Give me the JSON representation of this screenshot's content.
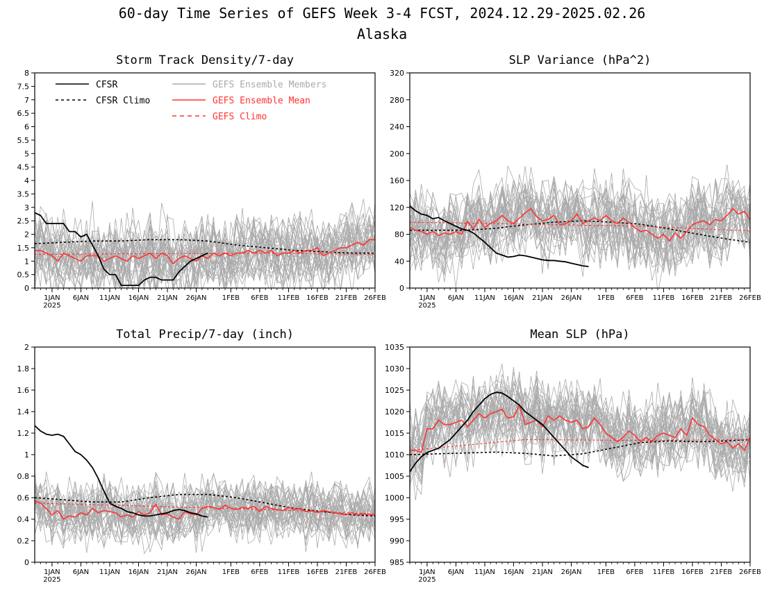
{
  "figure": {
    "title_line1": "60-day Time Series of GEFS Week 3-4 FCST, 2024.12.29-2025.02.26",
    "title_line2": "Alaska"
  },
  "colors": {
    "cfsr": "#000000",
    "members": "#aaaaaa",
    "ens_mean": "#ff3333",
    "gefs_climo": "#ff3333"
  },
  "legend": {
    "cfsr": "CFSR",
    "cfsr_climo": "CFSR Climo",
    "members": "GEFS Ensemble Members",
    "ens_mean": "GEFS Ensemble Mean",
    "gefs_climo": "GEFS Climo"
  },
  "x_axis": {
    "start_date": "2024-12-29",
    "n_days": 60,
    "tick_labels": [
      "1JAN",
      "6JAN",
      "11JAN",
      "16JAN",
      "21JAN",
      "26JAN",
      "1FEB",
      "6FEB",
      "11FEB",
      "16FEB",
      "21FEB",
      "26FEB"
    ],
    "tick_days": [
      3,
      8,
      13,
      18,
      23,
      28,
      34,
      39,
      44,
      49,
      54,
      59
    ],
    "year_label": "2025"
  },
  "chart_data": [
    {
      "type": "line",
      "title": "Storm Track Density/7-day",
      "ylim": [
        0,
        8
      ],
      "yticks": [
        0,
        0.5,
        1,
        1.5,
        2,
        2.5,
        3,
        3.5,
        4,
        4.5,
        5,
        5.5,
        6,
        6.5,
        7,
        7.5,
        8
      ],
      "ytick_labels": [
        "0",
        "0.5",
        "1",
        "1.5",
        "2",
        "2.5",
        "3",
        "3.5",
        "4",
        "4.5",
        "5",
        "5.5",
        "6",
        "6.5",
        "7",
        "7.5",
        "8"
      ],
      "has_legend": true,
      "members_count": 31,
      "members_spread": 0.7,
      "cfsr": {
        "x": [
          0,
          1,
          2,
          5,
          6,
          7,
          8,
          9,
          10,
          11,
          12,
          13,
          14,
          15,
          16,
          17,
          18,
          19,
          20,
          21,
          22,
          23,
          24,
          25,
          26,
          27,
          28,
          29,
          30
        ],
        "y": [
          2.8,
          2.7,
          2.4,
          2.4,
          2.1,
          2.1,
          1.9,
          2.0,
          1.6,
          1.2,
          0.7,
          0.5,
          0.5,
          0.1,
          0.1,
          0.1,
          0.1,
          0.3,
          0.4,
          0.4,
          0.3,
          0.3,
          0.3,
          0.6,
          0.8,
          1.0,
          1.1,
          1.2,
          1.3
        ]
      },
      "cfsr_climo": {
        "x": [
          0,
          5,
          10,
          15,
          20,
          25,
          30,
          35,
          40,
          45,
          50,
          55,
          59
        ],
        "y": [
          1.65,
          1.7,
          1.75,
          1.75,
          1.8,
          1.8,
          1.75,
          1.6,
          1.5,
          1.4,
          1.35,
          1.3,
          1.3
        ]
      },
      "ens_mean": {
        "x": [
          0,
          1,
          2,
          3,
          4,
          5,
          6,
          7,
          8,
          9,
          10,
          11,
          12,
          13,
          14,
          15,
          16,
          17,
          18,
          19,
          20,
          21,
          22,
          23,
          24,
          25,
          26,
          27,
          28,
          29,
          30,
          31,
          32,
          33,
          34,
          35,
          36,
          37,
          38,
          39,
          40,
          41,
          42,
          43,
          44,
          45,
          46,
          47,
          48,
          49,
          50,
          51,
          52,
          53,
          54,
          55,
          56,
          57,
          58,
          59
        ],
        "y": [
          1.4,
          1.4,
          1.3,
          1.2,
          1.0,
          1.3,
          1.2,
          1.1,
          1.0,
          1.2,
          1.2,
          1.2,
          1.0,
          1.1,
          1.2,
          1.1,
          1.0,
          1.2,
          1.1,
          1.2,
          1.3,
          1.1,
          1.3,
          1.2,
          0.9,
          1.1,
          1.2,
          1.1,
          1.0,
          1.2,
          1.1,
          1.3,
          1.2,
          1.3,
          1.2,
          1.3,
          1.3,
          1.4,
          1.3,
          1.4,
          1.3,
          1.4,
          1.2,
          1.3,
          1.3,
          1.4,
          1.3,
          1.4,
          1.4,
          1.5,
          1.2,
          1.3,
          1.4,
          1.5,
          1.5,
          1.6,
          1.7,
          1.6,
          1.8,
          1.8
        ]
      },
      "gefs_climo": {
        "x": [
          0,
          20,
          40,
          59
        ],
        "y": [
          1.25,
          1.28,
          1.3,
          1.25
        ]
      }
    },
    {
      "type": "line",
      "title": "SLP Variance (hPa^2)",
      "ylim": [
        0,
        320
      ],
      "yticks": [
        0,
        40,
        80,
        120,
        160,
        200,
        240,
        280,
        320
      ],
      "ytick_labels": [
        "0",
        "40",
        "80",
        "120",
        "160",
        "200",
        "240",
        "280",
        "320"
      ],
      "has_legend": false,
      "members_count": 31,
      "members_spread": 30,
      "cfsr": {
        "x": [
          0,
          1,
          2,
          3,
          4,
          5,
          6,
          7,
          8,
          9,
          10,
          11,
          12,
          13,
          14,
          15,
          16,
          17,
          18,
          19,
          20,
          21,
          22,
          23,
          24,
          25,
          26,
          27,
          28,
          29,
          30,
          31
        ],
        "y": [
          122,
          115,
          110,
          108,
          103,
          105,
          100,
          96,
          92,
          88,
          86,
          82,
          75,
          68,
          60,
          52,
          49,
          46,
          47,
          49,
          48,
          46,
          44,
          42,
          41,
          41,
          40,
          39,
          37,
          35,
          33,
          32
        ]
      },
      "cfsr_climo": {
        "x": [
          0,
          5,
          10,
          15,
          20,
          25,
          30,
          35,
          40,
          45,
          50,
          55,
          59
        ],
        "y": [
          86,
          86,
          86,
          89,
          94,
          98,
          100,
          98,
          95,
          88,
          80,
          73,
          68
        ]
      },
      "ens_mean": {
        "x": [
          0,
          1,
          2,
          3,
          4,
          5,
          6,
          7,
          8,
          9,
          10,
          11,
          12,
          13,
          14,
          15,
          16,
          17,
          18,
          19,
          20,
          21,
          22,
          23,
          24,
          25,
          26,
          27,
          28,
          29,
          30,
          31,
          32,
          33,
          34,
          35,
          36,
          37,
          38,
          39,
          40,
          41,
          42,
          43,
          44,
          45,
          46,
          47,
          48,
          49,
          50,
          51,
          52,
          53,
          54,
          55,
          56,
          57,
          58,
          59
        ],
        "y": [
          90,
          86,
          84,
          80,
          84,
          78,
          82,
          80,
          84,
          80,
          99,
          88,
          102,
          90,
          96,
          100,
          108,
          100,
          96,
          104,
          112,
          118,
          106,
          100,
          102,
          108,
          94,
          96,
          100,
          110,
          96,
          100,
          104,
          100,
          108,
          100,
          96,
          104,
          98,
          90,
          84,
          86,
          80,
          74,
          80,
          70,
          82,
          74,
          84,
          94,
          98,
          100,
          94,
          102,
          100,
          108,
          118,
          110,
          114,
          102
        ]
      },
      "gefs_climo": {
        "x": [
          0,
          20,
          40,
          59
        ],
        "y": [
          98,
          95,
          92,
          85
        ]
      }
    },
    {
      "type": "line",
      "title": "Total Precip/7-day (inch)",
      "ylim": [
        0,
        2
      ],
      "yticks": [
        0,
        0.2,
        0.4,
        0.6,
        0.8,
        1,
        1.2,
        1.4,
        1.6,
        1.8,
        2
      ],
      "ytick_labels": [
        "0",
        "0.2",
        "0.4",
        "0.6",
        "0.8",
        "1",
        "1.2",
        "1.4",
        "1.6",
        "1.8",
        "2"
      ],
      "has_legend": false,
      "members_count": 31,
      "members_spread": 0.14,
      "cfsr": {
        "x": [
          0,
          1,
          2,
          3,
          4,
          5,
          6,
          7,
          8,
          9,
          10,
          11,
          12,
          13,
          14,
          15,
          16,
          17,
          18,
          19,
          20,
          21,
          22,
          23,
          24,
          25,
          26,
          27,
          28,
          29,
          30
        ],
        "y": [
          1.27,
          1.22,
          1.19,
          1.18,
          1.19,
          1.17,
          1.1,
          1.03,
          1.0,
          0.95,
          0.88,
          0.78,
          0.66,
          0.55,
          0.52,
          0.5,
          0.47,
          0.46,
          0.44,
          0.43,
          0.43,
          0.44,
          0.45,
          0.46,
          0.48,
          0.49,
          0.48,
          0.46,
          0.45,
          0.43,
          0.42
        ]
      },
      "cfsr_climo": {
        "x": [
          0,
          5,
          10,
          15,
          20,
          25,
          30,
          35,
          40,
          45,
          50,
          55,
          59
        ],
        "y": [
          0.6,
          0.58,
          0.56,
          0.56,
          0.6,
          0.63,
          0.63,
          0.6,
          0.55,
          0.5,
          0.47,
          0.44,
          0.43
        ]
      },
      "ens_mean": {
        "x": [
          0,
          1,
          2,
          3,
          4,
          5,
          6,
          7,
          8,
          9,
          10,
          11,
          12,
          13,
          14,
          15,
          16,
          17,
          18,
          19,
          20,
          21,
          22,
          23,
          24,
          25,
          26,
          27,
          28,
          29,
          30,
          31,
          32,
          33,
          34,
          35,
          36,
          37,
          38,
          39,
          40,
          41,
          42,
          43,
          44,
          45,
          46,
          47,
          48,
          49,
          50,
          51,
          52,
          53,
          54,
          55,
          56,
          57,
          58,
          59
        ],
        "y": [
          0.57,
          0.55,
          0.5,
          0.44,
          0.48,
          0.4,
          0.43,
          0.42,
          0.46,
          0.44,
          0.5,
          0.46,
          0.48,
          0.47,
          0.46,
          0.42,
          0.44,
          0.42,
          0.47,
          0.44,
          0.46,
          0.54,
          0.44,
          0.45,
          0.42,
          0.4,
          0.47,
          0.45,
          0.44,
          0.5,
          0.52,
          0.51,
          0.49,
          0.53,
          0.5,
          0.49,
          0.51,
          0.5,
          0.52,
          0.47,
          0.52,
          0.5,
          0.49,
          0.48,
          0.51,
          0.49,
          0.5,
          0.47,
          0.48,
          0.46,
          0.48,
          0.47,
          0.46,
          0.45,
          0.44,
          0.46,
          0.44,
          0.45,
          0.44,
          0.44
        ]
      },
      "gefs_climo": {
        "x": [
          0,
          20,
          40,
          59
        ],
        "y": [
          0.55,
          0.52,
          0.49,
          0.45
        ]
      }
    },
    {
      "type": "line",
      "title": "Mean SLP (hPa)",
      "ylim": [
        985,
        1035
      ],
      "yticks": [
        985,
        990,
        995,
        1000,
        1005,
        1010,
        1015,
        1020,
        1025,
        1030,
        1035
      ],
      "ytick_labels": [
        "985",
        "990",
        "995",
        "1000",
        "1005",
        "1010",
        "1015",
        "1020",
        "1025",
        "1030",
        "1035"
      ],
      "has_legend": false,
      "members_count": 31,
      "members_spread": 4.5,
      "cfsr": {
        "x": [
          0,
          1,
          2,
          3,
          4,
          5,
          6,
          7,
          8,
          9,
          10,
          11,
          12,
          13,
          14,
          15,
          16,
          17,
          18,
          19,
          20,
          21,
          22,
          23,
          24,
          25,
          26,
          27,
          28,
          29,
          30,
          31
        ],
        "y": [
          1006,
          1008,
          1009.5,
          1010.5,
          1011,
          1011.5,
          1012.5,
          1013.5,
          1015,
          1016.5,
          1018,
          1020,
          1021.5,
          1023,
          1024,
          1024.5,
          1024.3,
          1023.5,
          1022.5,
          1021.5,
          1020,
          1019,
          1018,
          1017,
          1015.5,
          1014,
          1012.5,
          1011,
          1009.5,
          1008.5,
          1007.5,
          1007
        ]
      },
      "cfsr_climo": {
        "x": [
          0,
          5,
          10,
          15,
          20,
          25,
          30,
          35,
          40,
          45,
          50,
          55,
          59
        ],
        "y": [
          1010,
          1010.2,
          1010.4,
          1010.6,
          1010.3,
          1009.7,
          1010.2,
          1011.5,
          1012.8,
          1013.2,
          1013,
          1013.2,
          1013.5
        ]
      },
      "ens_mean": {
        "x": [
          0,
          1,
          2,
          3,
          4,
          5,
          6,
          7,
          8,
          9,
          10,
          11,
          12,
          13,
          14,
          15,
          16,
          17,
          18,
          19,
          20,
          21,
          22,
          23,
          24,
          25,
          26,
          27,
          28,
          29,
          30,
          31,
          32,
          33,
          34,
          35,
          36,
          37,
          38,
          39,
          40,
          41,
          42,
          43,
          44,
          45,
          46,
          47,
          48,
          49,
          50,
          51,
          52,
          53,
          54,
          55,
          56,
          57,
          58,
          59
        ],
        "y": [
          1011,
          1011,
          1010.5,
          1016,
          1016,
          1018,
          1017,
          1017,
          1017.5,
          1018,
          1016.5,
          1018,
          1019.5,
          1018.5,
          1019.5,
          1020,
          1020.5,
          1018.5,
          1018.8,
          1021.5,
          1017,
          1017.5,
          1018,
          1016.5,
          1019,
          1018,
          1019,
          1018,
          1017.5,
          1018,
          1016,
          1016.5,
          1018.5,
          1017,
          1015,
          1014,
          1013,
          1014,
          1015.5,
          1014.5,
          1013,
          1014,
          1013,
          1014.5,
          1015,
          1014.5,
          1014,
          1016,
          1014.5,
          1018.5,
          1017,
          1016.5,
          1014.5,
          1013.5,
          1012.5,
          1013,
          1011.5,
          1012.5,
          1011,
          1014
        ]
      },
      "gefs_climo": {
        "x": [
          0,
          20,
          40,
          59
        ],
        "y": [
          1011,
          1013.5,
          1013.3,
          1013.5
        ]
      }
    }
  ]
}
